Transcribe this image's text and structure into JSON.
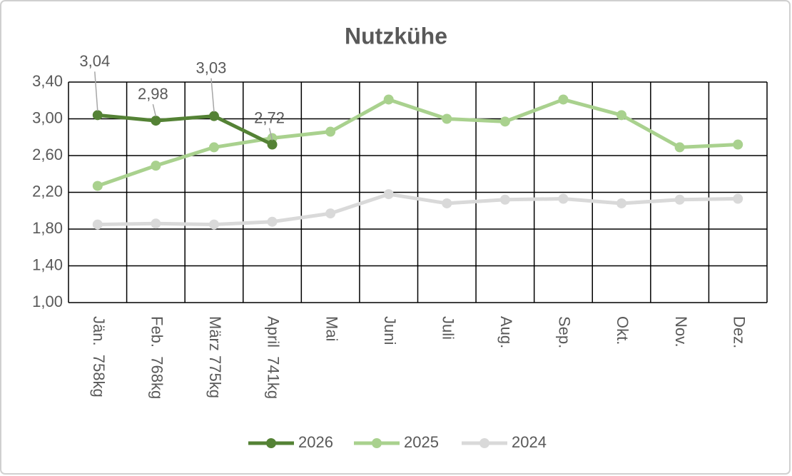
{
  "chart_data": {
    "type": "line",
    "title": "Nutzkühe",
    "categories": [
      "Jän.  758kg",
      "Feb.  768kg",
      "März 775kg",
      "April  741kg",
      "Mai",
      "Juni",
      "Juli",
      "Aug.",
      "Sep.",
      "Okt.",
      "Nov.",
      "Dez."
    ],
    "series": [
      {
        "name": "2026",
        "color": "#548235",
        "values": [
          3.04,
          2.98,
          3.03,
          2.72,
          null,
          null,
          null,
          null,
          null,
          null,
          null,
          null
        ],
        "value_labels": [
          "3,04",
          "2,98",
          "3,03",
          "2,72",
          null,
          null,
          null,
          null,
          null,
          null,
          null,
          null
        ]
      },
      {
        "name": "2025",
        "color": "#a9d18e",
        "values": [
          2.27,
          2.49,
          2.69,
          2.79,
          2.86,
          3.21,
          3.0,
          2.97,
          3.21,
          3.04,
          2.69,
          2.72
        ]
      },
      {
        "name": "2024",
        "color": "#d9d9d9",
        "values": [
          1.85,
          1.86,
          1.85,
          1.88,
          1.97,
          2.18,
          2.08,
          2.12,
          2.13,
          2.08,
          2.12,
          2.13
        ]
      }
    ],
    "ylim": [
      1.0,
      3.4
    ],
    "yticks": [
      {
        "value": 1.0,
        "label": "1,00"
      },
      {
        "value": 1.4,
        "label": "1,40"
      },
      {
        "value": 1.8,
        "label": "1,80"
      },
      {
        "value": 2.2,
        "label": "2,20"
      },
      {
        "value": 2.6,
        "label": "2,60"
      },
      {
        "value": 3.0,
        "label": "3,00"
      },
      {
        "value": 3.4,
        "label": "3,40"
      }
    ],
    "grid": true,
    "legend": "bottom"
  }
}
